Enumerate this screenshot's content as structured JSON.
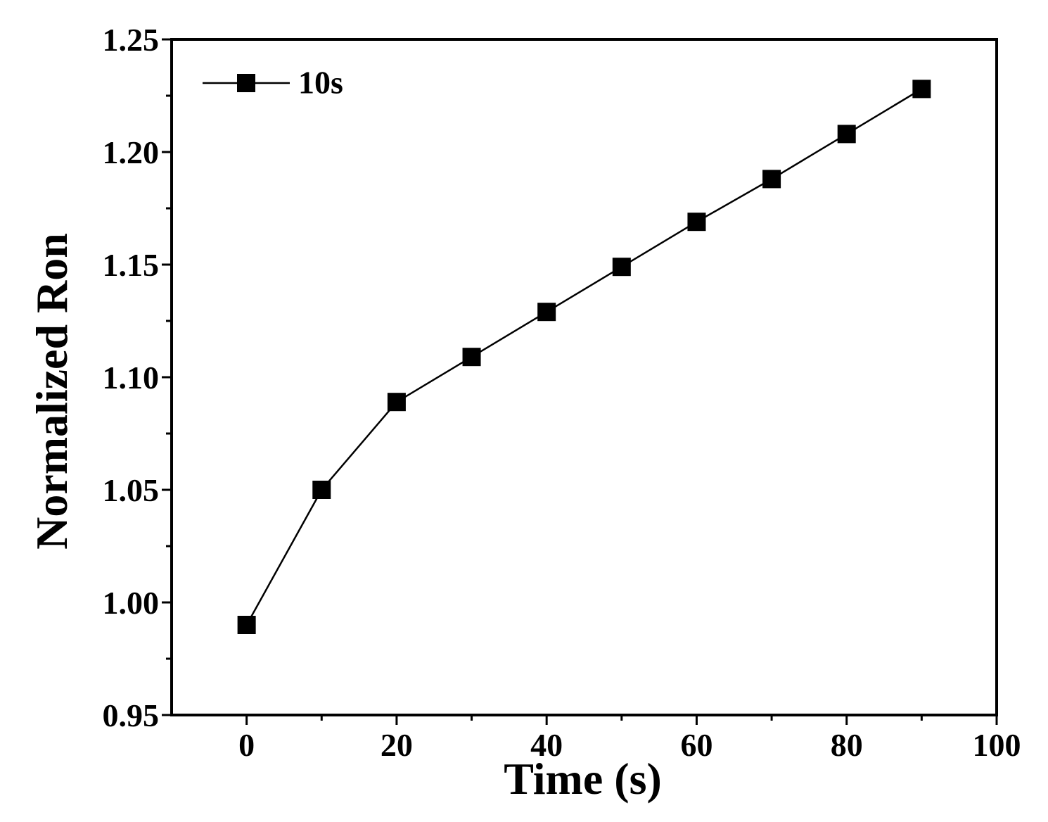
{
  "chart_data": {
    "type": "line",
    "title": "",
    "xlabel": "Time (s)",
    "ylabel": "Normalized Ron",
    "xlim": [
      -10,
      100
    ],
    "ylim": [
      0.95,
      1.25
    ],
    "xticks": [
      0,
      20,
      40,
      60,
      80,
      100
    ],
    "xtick_labels": [
      "0",
      "20",
      "40",
      "60",
      "80",
      "100"
    ],
    "yticks": [
      0.95,
      1.0,
      1.05,
      1.1,
      1.15,
      1.2,
      1.25
    ],
    "ytick_labels": [
      "0.95",
      "1.00",
      "1.05",
      "1.10",
      "1.15",
      "1.20",
      "1.25"
    ],
    "grid": false,
    "legend_position": "top-left",
    "series": [
      {
        "name": "10s",
        "color": "#000000",
        "marker": "square",
        "x": [
          0,
          10,
          20,
          30,
          40,
          50,
          60,
          70,
          80,
          90
        ],
        "y": [
          0.99,
          1.05,
          1.089,
          1.109,
          1.129,
          1.149,
          1.169,
          1.188,
          1.208,
          1.228
        ]
      }
    ]
  }
}
